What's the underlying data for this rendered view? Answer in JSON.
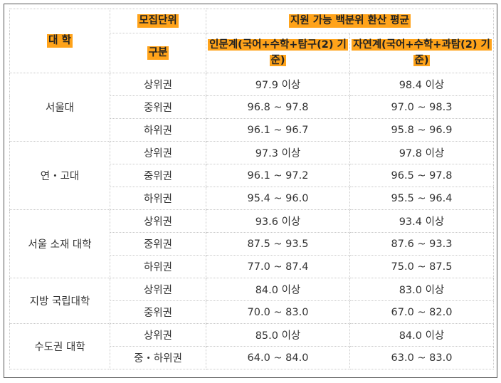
{
  "header": {
    "university": "대 학",
    "unit": "모집단위",
    "category": "구분",
    "score_avg": "지원 가능 백분위 환산 평균",
    "humanities": "인문계(국어+수학+탐구(2) 기준)",
    "sciences": "자연계(국어+수학+과탐(2) 기준)"
  },
  "groups": [
    {
      "name": "서울대",
      "rows": [
        {
          "tier": "상위권",
          "humanities": "97.9 이상",
          "sciences": "98.4 이상"
        },
        {
          "tier": "중위권",
          "humanities": "96.8 ~ 97.8",
          "sciences": "97.0 ~ 98.3"
        },
        {
          "tier": "하위권",
          "humanities": "96.1 ~ 96.7",
          "sciences": "95.8 ~ 96.9"
        }
      ]
    },
    {
      "name": "연・고대",
      "rows": [
        {
          "tier": "상위권",
          "humanities": "97.3 이상",
          "sciences": "97.8 이상"
        },
        {
          "tier": "중위권",
          "humanities": "96.1 ~ 97.2",
          "sciences": "96.5 ~ 97.8"
        },
        {
          "tier": "하위권",
          "humanities": "95.4 ~ 96.0",
          "sciences": "95.5 ~ 96.4"
        }
      ]
    },
    {
      "name": "서울 소재 대학",
      "rows": [
        {
          "tier": "상위권",
          "humanities": "93.6 이상",
          "sciences": "93.4 이상"
        },
        {
          "tier": "중위권",
          "humanities": "87.5 ~ 93.5",
          "sciences": "87.6 ~ 93.3"
        },
        {
          "tier": "하위권",
          "humanities": "77.0 ~ 87.4",
          "sciences": "75.0 ~ 87.5"
        }
      ]
    },
    {
      "name": "지방 국립대학",
      "rows": [
        {
          "tier": "상위권",
          "humanities": "84.0 이상",
          "sciences": "83.0 이상"
        },
        {
          "tier": "중위권",
          "humanities": "70.0 ~ 83.0",
          "sciences": "67.0 ~ 82.0"
        }
      ]
    },
    {
      "name": "수도권 대학",
      "rows": [
        {
          "tier": "상위권",
          "humanities": "85.0 이상",
          "sciences": "84.0 이상"
        },
        {
          "tier": "중・하위권",
          "humanities": "64.0 ~ 84.0",
          "sciences": "63.0 ~ 83.0"
        }
      ]
    }
  ]
}
